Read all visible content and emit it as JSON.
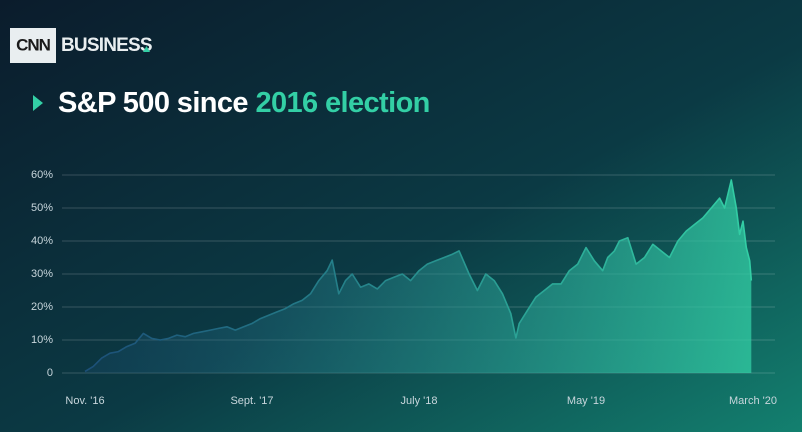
{
  "logo": {
    "brand": "CNN",
    "section": "BUSINESS"
  },
  "chart_data": {
    "type": "line",
    "title": "S&P 500 since",
    "title_highlight": "2016 election",
    "x": [
      0,
      0.5,
      1,
      1.5,
      2,
      2.5,
      3,
      3.5,
      4,
      4.5,
      5,
      5.5,
      6,
      6.5,
      7,
      7.5,
      8,
      8.5,
      9,
      9.5,
      10,
      10.5,
      11,
      11.5,
      12,
      12.5,
      13,
      13.5,
      14,
      14.5,
      14.8,
      15.2,
      15.6,
      16,
      16.5,
      17,
      17.5,
      18,
      18.5,
      19,
      19.5,
      20,
      20.5,
      21,
      21.5,
      22,
      22.4,
      23,
      23.5,
      24,
      24.5,
      25,
      25.5,
      25.8,
      26,
      26.5,
      27,
      27.5,
      28,
      28.5,
      29,
      29.5,
      30,
      30.5,
      31,
      31.3,
      31.7,
      32,
      32.5,
      33,
      33.5,
      34,
      34.5,
      35,
      35.5,
      36,
      36.5,
      37,
      37.5,
      38,
      38.3,
      38.7,
      39,
      39.2,
      39.4,
      39.6,
      39.8,
      39.9
    ],
    "series": [
      {
        "color": "#33cfa5",
        "values": [
          0.5,
          2,
          4.5,
          6,
          6.5,
          8,
          9,
          12,
          10.5,
          10,
          10.5,
          11.5,
          11,
          12,
          12.5,
          13,
          13.5,
          14,
          13,
          14,
          15,
          16.5,
          17.5,
          18.5,
          19.5,
          21,
          22,
          24,
          28,
          31,
          34.2,
          24,
          28,
          30,
          26,
          27,
          25.5,
          28,
          29,
          30,
          28,
          31,
          33,
          34,
          35,
          36,
          37,
          30,
          25,
          30,
          28,
          24,
          18,
          10.6,
          15,
          19,
          23,
          25,
          27,
          27,
          31,
          33,
          38,
          34,
          31,
          35,
          37,
          40,
          41,
          33,
          35,
          39,
          37,
          35,
          40,
          43,
          45,
          47,
          50,
          53,
          50,
          58.5,
          50,
          42,
          46,
          38,
          34,
          28
        ]
      }
    ],
    "xlim": [
      0,
      40
    ],
    "xticks": [
      {
        "value": 0,
        "label": "Nov. '16"
      },
      {
        "value": 10,
        "label": "Sept. '17"
      },
      {
        "value": 20,
        "label": "July '18"
      },
      {
        "value": 30,
        "label": "May '19"
      },
      {
        "value": 40,
        "label": "March '20"
      }
    ],
    "ylim": [
      0,
      60
    ],
    "yticks": [
      0,
      {
        "value": 10,
        "label": "10%"
      },
      {
        "value": 20,
        "label": "20%"
      },
      {
        "value": 30,
        "label": "30%"
      },
      {
        "value": 40,
        "label": "40%"
      },
      {
        "value": 50,
        "label": "50%"
      },
      {
        "value": 60,
        "label": "60%"
      }
    ],
    "grid": true
  }
}
